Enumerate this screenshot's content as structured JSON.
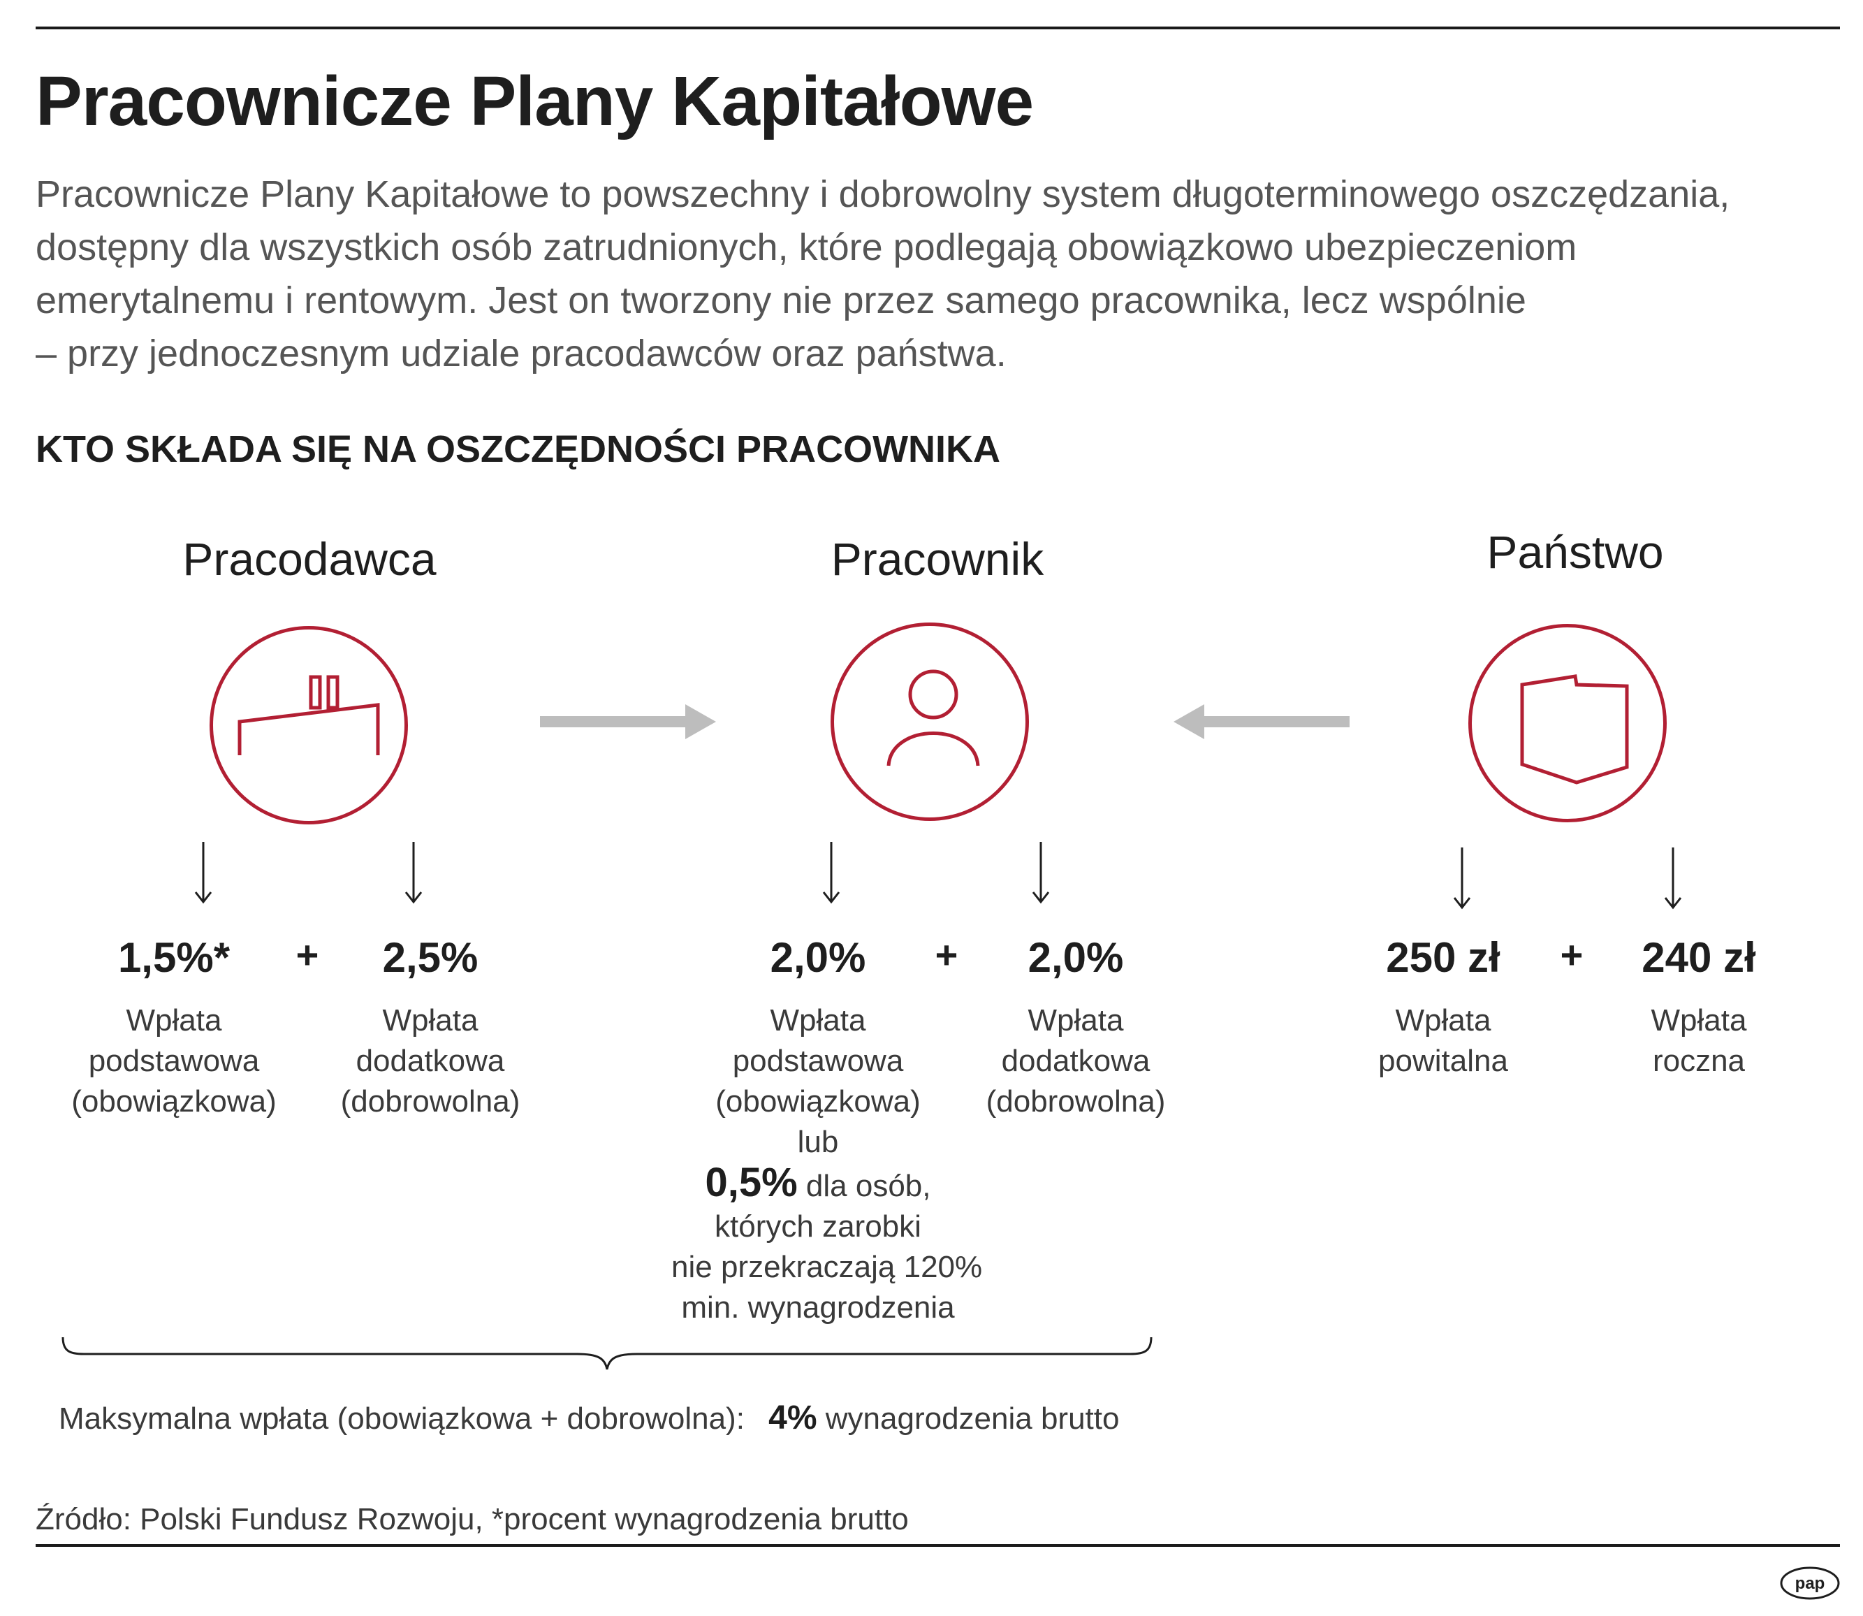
{
  "title": "Pracownicze Plany Kapitałowe",
  "intro": [
    "Pracownicze Plany Kapitałowe to powszechny i dobrowolny system długoterminowego oszczędzania,",
    "dostępny dla wszystkich osób zatrudnionych, które podlegają obowiązkowo ubezpieczeniom",
    "emerytalnemu i rentowym. Jest on tworzony nie przez samego pracownika, lecz wspólnie",
    "– przy jednoczesnym udziale pracodawców oraz państwa."
  ],
  "subheading": "KTO SKŁADA SIĘ NA OSZCZĘDNOŚCI PRACOWNIKA",
  "columns": [
    {
      "title": "Pracodawca",
      "icon": "factory-icon",
      "plus": "+",
      "items": [
        {
          "value": "1,5%*",
          "desc": [
            "Wpłata",
            "podstawowa",
            "(obowiązkowa)"
          ]
        },
        {
          "value": "2,5%",
          "desc": [
            "Wpłata",
            "dodatkowa",
            "(dobrowolna)"
          ]
        }
      ]
    },
    {
      "title": "Pracownik",
      "icon": "person-icon",
      "plus": "+",
      "items": [
        {
          "value": "2,0%",
          "desc": [
            "Wpłata",
            "podstawowa",
            "(obowiązkowa)",
            "lub"
          ]
        },
        {
          "value": "2,0%",
          "desc": [
            "Wpłata",
            "dodatkowa",
            "(dobrowolna)"
          ]
        }
      ],
      "alt": {
        "value": "0,5%",
        "lead": " dla osób,",
        "lines": [
          "których zarobki",
          "nie przekraczają 120%",
          "min. wynagrodzenia"
        ]
      }
    },
    {
      "title": "Państwo",
      "icon": "poland-map-icon",
      "plus": "+",
      "items": [
        {
          "value": "250 zł",
          "desc": [
            "Wpłata",
            "powitalna"
          ]
        },
        {
          "value": "240 zł",
          "desc": [
            "Wpłata",
            "roczna"
          ]
        }
      ]
    }
  ],
  "max_note": {
    "label": "Maksymalna wpłata (obowiązkowa + dobrowolna):",
    "value": "4%",
    "suffix": " wynagrodzenia brutto"
  },
  "source": "Źródło: Polski Fundusz Rozwoju, *procent wynagrodzenia brutto",
  "logo": "pap",
  "colors": {
    "accent": "#b21f33",
    "arrow": "#bdbdbd",
    "text": "#1e1e1e",
    "muted": "#555555"
  }
}
